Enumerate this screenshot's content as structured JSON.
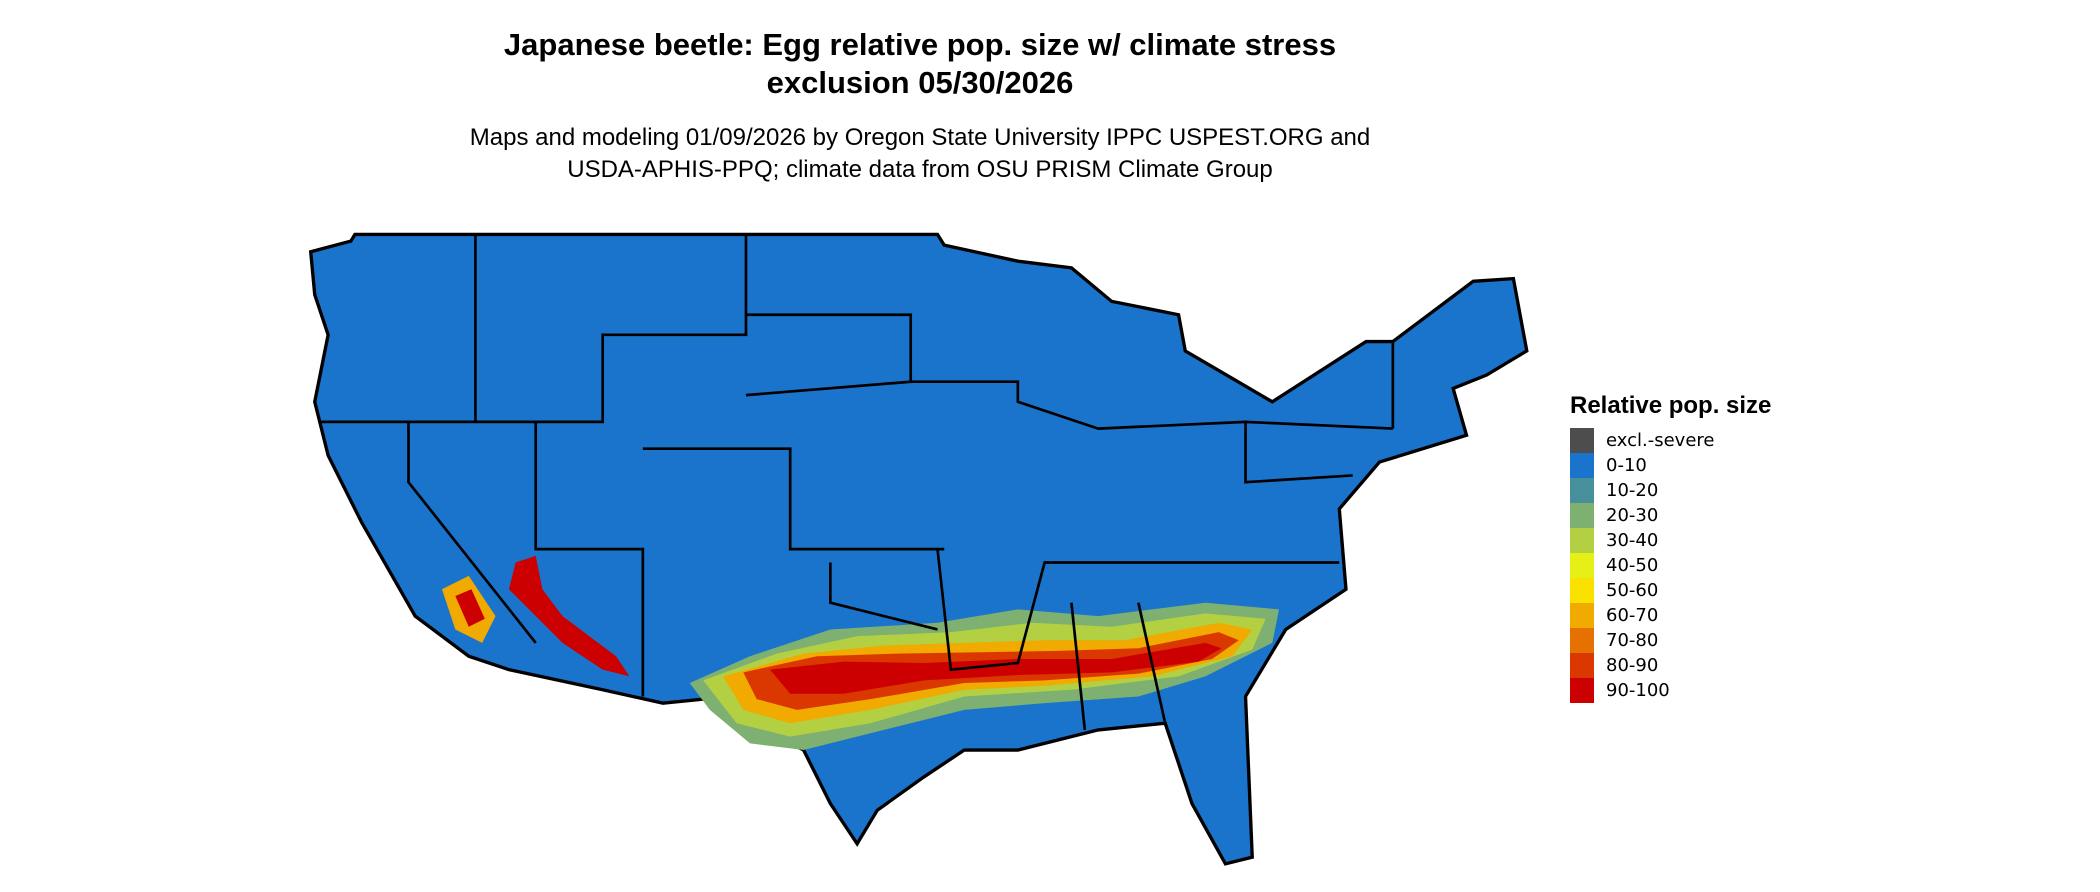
{
  "title_line1": "Japanese beetle: Egg relative pop. size w/ climate stress",
  "title_line2": "exclusion 05/30/2026",
  "subtitle_line1": "Maps and modeling 01/09/2026 by Oregon State University IPPC USPEST.ORG and",
  "subtitle_line2": "USDA-APHIS-PPQ; climate data from OSU PRISM Climate Group",
  "map": {
    "region": "Contiguous United States",
    "background_class": "0-10",
    "high_band": "southern US from Texas to South Carolina, and southern Arizona/California"
  },
  "legend": {
    "title": "Relative pop. size",
    "items": [
      {
        "label": "excl.-severe",
        "color": "#4d4d4d"
      },
      {
        "label": "0-10",
        "color": "#1b74cc"
      },
      {
        "label": "10-20",
        "color": "#488f9c"
      },
      {
        "label": "20-30",
        "color": "#7db071"
      },
      {
        "label": "30-40",
        "color": "#b3d043"
      },
      {
        "label": "40-50",
        "color": "#e6f016"
      },
      {
        "label": "50-60",
        "color": "#fae100"
      },
      {
        "label": "60-70",
        "color": "#f0aa00"
      },
      {
        "label": "70-80",
        "color": "#e57200"
      },
      {
        "label": "80-90",
        "color": "#da3800"
      },
      {
        "label": "90-100",
        "color": "#cc0000"
      }
    ]
  }
}
